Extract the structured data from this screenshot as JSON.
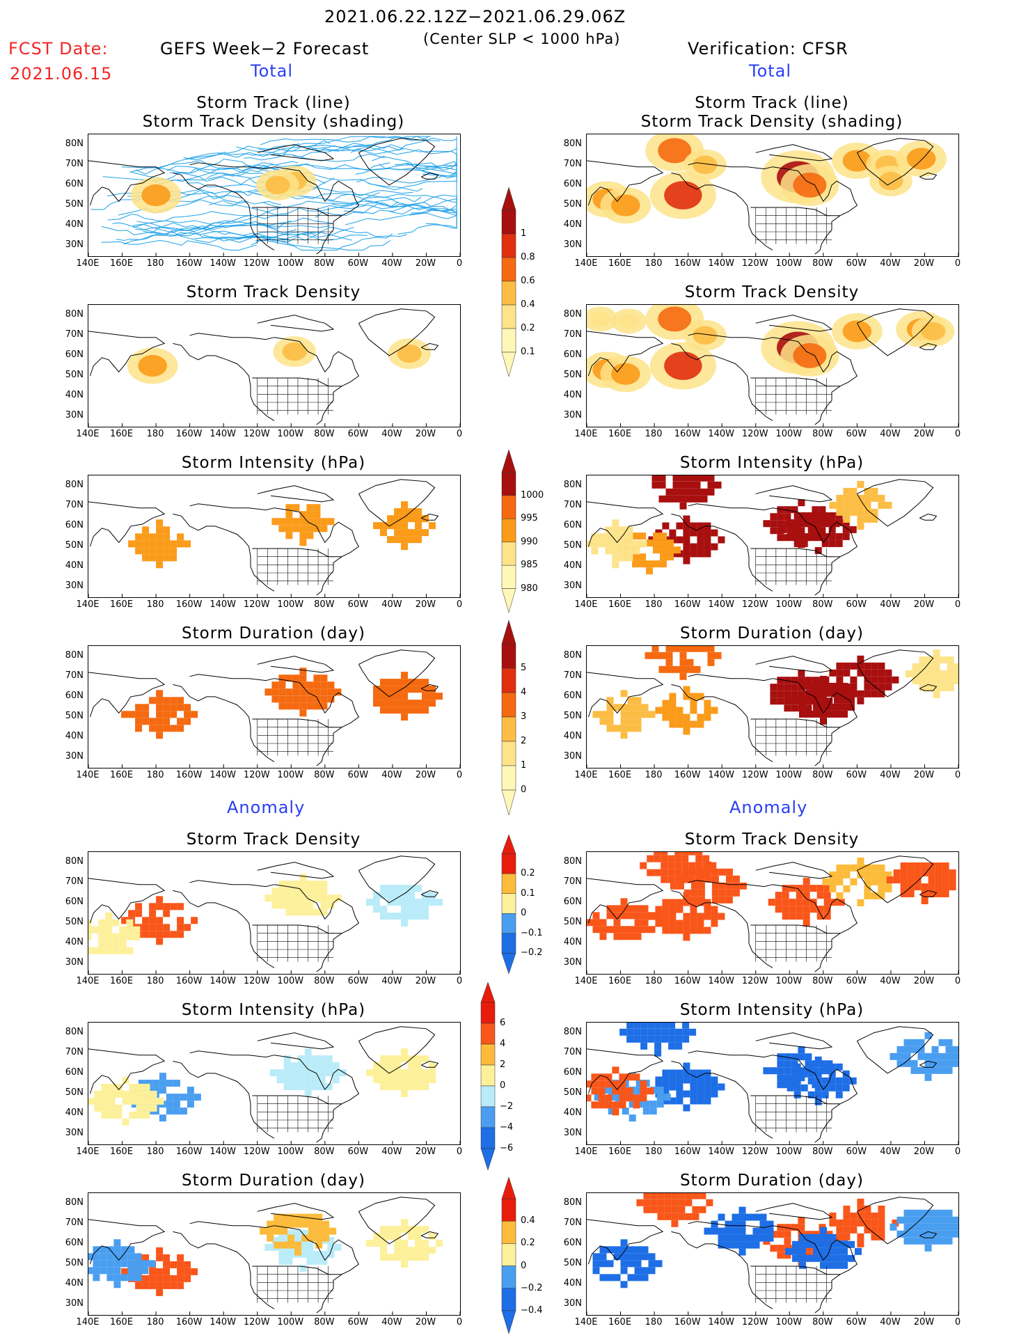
{
  "header": {
    "period": "2021.06.22.12Z−2021.06.29.06Z",
    "criterion": "(Center SLP < 1000 hPa)",
    "fcst_label": "FCST Date:",
    "fcst_date": "2021.06.15",
    "left_model": "GEFS Week−2 Forecast",
    "right_model": "Verification: CFSR",
    "total_left": "Total",
    "total_right": "Total",
    "anomaly_left": "Anomaly",
    "anomaly_right": "Anomaly"
  },
  "panel_titles": {
    "track_line": "Storm Track (line)",
    "track_shading": "Storm Track Density (shading)",
    "density": "Storm Track Density",
    "intensity": "Storm Intensity (hPa)",
    "duration": "Storm Duration (day)"
  },
  "axes": {
    "lat_labels": [
      "80N",
      "70N",
      "60N",
      "50N",
      "40N",
      "30N"
    ],
    "lon_labels": [
      "140E",
      "160E",
      "180",
      "160W",
      "140W",
      "120W",
      "100W",
      "80W",
      "60W",
      "40W",
      "20W",
      "0"
    ]
  },
  "colorbars": {
    "density_total": [
      "1",
      "0.8",
      "0.6",
      "0.4",
      "0.2",
      "0.1"
    ],
    "intensity_total": [
      "1000",
      "995",
      "990",
      "985",
      "980"
    ],
    "duration_total": [
      "5",
      "4",
      "3",
      "2",
      "1",
      "0"
    ],
    "density_anom": [
      "0.2",
      "0.1",
      "0",
      "−0.1",
      "−0.2"
    ],
    "intensity_anom": [
      "6",
      "4",
      "2",
      "0",
      "−2",
      "−4",
      "−6"
    ],
    "duration_anom": [
      "0.4",
      "0.2",
      "0",
      "−0.2",
      "−0.4"
    ]
  },
  "chart_data": {
    "type": "heatmap",
    "lon_range": [
      140,
      360
    ],
    "lat_range": [
      25,
      85
    ],
    "palettes": {
      "total": [
        "#fff7b8",
        "#fde38a",
        "#fcbd45",
        "#fb9b1a",
        "#f56a10",
        "#e0300f",
        "#a80f0f"
      ],
      "anomaly": [
        "#1e6ee6",
        "#4a9ef0",
        "#b9ecf8",
        "#fdf09a",
        "#fcbb3a",
        "#f9561a",
        "#e81c0c"
      ]
    },
    "fields": [
      {
        "panel": "gefs_track",
        "blobs": [
          [
            180,
            55,
            3
          ],
          [
            262,
            62,
            2
          ],
          [
            252,
            60,
            2
          ]
        ]
      },
      {
        "panel": "cfsr_track",
        "blobs": [
          [
            192,
            77,
            4
          ],
          [
            152,
            53,
            3
          ],
          [
            163,
            50,
            3
          ],
          [
            197,
            55,
            5
          ],
          [
            210,
            70,
            2
          ],
          [
            265,
            64,
            6
          ],
          [
            272,
            60,
            4
          ],
          [
            300,
            72,
            3
          ],
          [
            318,
            70,
            2
          ],
          [
            338,
            73,
            3
          ],
          [
            320,
            62,
            2
          ]
        ]
      },
      {
        "panel": "gefs_density",
        "blobs": [
          [
            178,
            55,
            3
          ],
          [
            262,
            62,
            2
          ],
          [
            330,
            61,
            2
          ]
        ]
      },
      {
        "panel": "cfsr_density",
        "blobs": [
          [
            192,
            78,
            4
          ],
          [
            152,
            53,
            3
          ],
          [
            163,
            51,
            3
          ],
          [
            197,
            55,
            5
          ],
          [
            210,
            70,
            2
          ],
          [
            265,
            64,
            6
          ],
          [
            272,
            60,
            4
          ],
          [
            300,
            72,
            3
          ],
          [
            338,
            73,
            3
          ],
          [
            148,
            78,
            1
          ],
          [
            165,
            77,
            1
          ],
          [
            345,
            72,
            2
          ]
        ]
      },
      {
        "panel": "gefs_intensity",
        "blobs": [
          [
            180,
            53,
            3
          ],
          [
            265,
            64,
            3
          ],
          [
            325,
            62,
            3
          ]
        ]
      },
      {
        "panel": "cfsr_intensity",
        "blobs": [
          [
            265,
            63,
            6
          ],
          [
            275,
            60,
            6
          ],
          [
            197,
            55,
            6
          ],
          [
            175,
            50,
            3
          ],
          [
            155,
            53,
            1
          ],
          [
            195,
            82,
            6
          ],
          [
            300,
            72,
            2
          ]
        ]
      },
      {
        "panel": "gefs_duration",
        "blobs": [
          [
            180,
            53,
            4
          ],
          [
            265,
            64,
            4
          ],
          [
            325,
            62,
            4
          ]
        ]
      },
      {
        "panel": "cfsr_duration",
        "blobs": [
          [
            265,
            63,
            6
          ],
          [
            278,
            60,
            6
          ],
          [
            300,
            70,
            6
          ],
          [
            197,
            55,
            3
          ],
          [
            160,
            53,
            2
          ],
          [
            195,
            82,
            4
          ],
          [
            345,
            73,
            1
          ]
        ]
      },
      {
        "panel": "gefs_density_anom",
        "blobs": [
          [
            180,
            53,
            5
          ],
          [
            265,
            64,
            3
          ],
          [
            325,
            62,
            2
          ],
          [
            150,
            45,
            3
          ]
        ]
      },
      {
        "panel": "cfsr_density_anom",
        "blobs": [
          [
            192,
            80,
            5
          ],
          [
            160,
            52,
            5
          ],
          [
            197,
            55,
            5
          ],
          [
            210,
            70,
            5
          ],
          [
            268,
            62,
            5
          ],
          [
            300,
            72,
            4
          ],
          [
            338,
            73,
            5
          ]
        ]
      },
      {
        "panel": "gefs_intensity_anom",
        "blobs": [
          [
            182,
            50,
            1
          ],
          [
            268,
            62,
            2
          ],
          [
            325,
            62,
            3
          ],
          [
            160,
            48,
            3
          ]
        ]
      },
      {
        "panel": "cfsr_intensity_anom",
        "blobs": [
          [
            180,
            82,
            0
          ],
          [
            265,
            63,
            0
          ],
          [
            275,
            58,
            0
          ],
          [
            197,
            55,
            0
          ],
          [
            165,
            50,
            1
          ],
          [
            155,
            53,
            5
          ],
          [
            340,
            70,
            1
          ]
        ]
      },
      {
        "panel": "gefs_duration_anom",
        "blobs": [
          [
            180,
            48,
            5
          ],
          [
            265,
            60,
            2
          ],
          [
            155,
            52,
            1
          ],
          [
            262,
            68,
            4
          ],
          [
            325,
            62,
            3
          ]
        ]
      },
      {
        "panel": "cfsr_duration_anom",
        "blobs": [
          [
            265,
            63,
            5
          ],
          [
            278,
            58,
            0
          ],
          [
            160,
            52,
            0
          ],
          [
            190,
            82,
            5
          ],
          [
            230,
            68,
            0
          ],
          [
            300,
            72,
            5
          ],
          [
            340,
            70,
            1
          ]
        ]
      }
    ]
  }
}
